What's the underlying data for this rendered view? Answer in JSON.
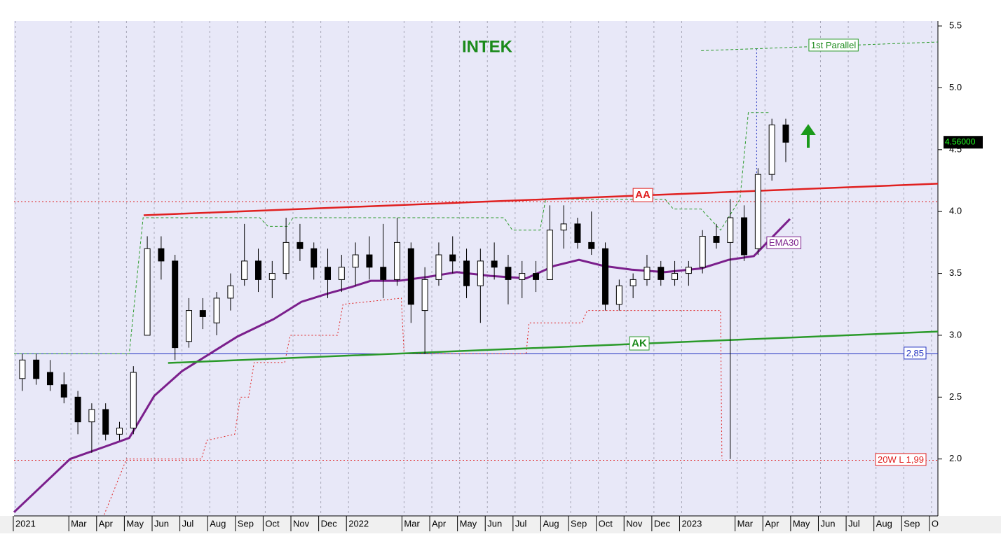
{
  "chart_data": {
    "type": "candlestick",
    "title": "INTEK",
    "xlim": [
      -0.05,
      33.23
    ],
    "xticks": [
      {
        "value": 0,
        "label": "2021"
      },
      {
        "value": 2,
        "label": "Mar"
      },
      {
        "value": 3,
        "label": "Apr"
      },
      {
        "value": 4,
        "label": "May"
      },
      {
        "value": 5,
        "label": "Jun"
      },
      {
        "value": 6,
        "label": "Jul"
      },
      {
        "value": 7,
        "label": "Aug"
      },
      {
        "value": 8,
        "label": "Sep"
      },
      {
        "value": 9,
        "label": "Oct"
      },
      {
        "value": 10,
        "label": "Nov"
      },
      {
        "value": 11,
        "label": "Dec"
      },
      {
        "value": 12,
        "label": "2022"
      },
      {
        "value": 14,
        "label": "Mar"
      },
      {
        "value": 15,
        "label": "Apr"
      },
      {
        "value": 16,
        "label": "May"
      },
      {
        "value": 17,
        "label": "Jun"
      },
      {
        "value": 18,
        "label": "Jul"
      },
      {
        "value": 19,
        "label": "Aug"
      },
      {
        "value": 20,
        "label": "Sep"
      },
      {
        "value": 21,
        "label": "Oct"
      },
      {
        "value": 22,
        "label": "Nov"
      },
      {
        "value": 23,
        "label": "Dec"
      },
      {
        "value": 24,
        "label": "2023"
      },
      {
        "value": 26,
        "label": "Mar"
      },
      {
        "value": 27,
        "label": "Apr"
      },
      {
        "value": 28,
        "label": "May"
      },
      {
        "value": 29,
        "label": "Jun"
      },
      {
        "value": 30,
        "label": "Jul"
      },
      {
        "value": 31,
        "label": "Aug"
      },
      {
        "value": 32,
        "label": "Sep"
      },
      {
        "value": 33,
        "label": "O"
      }
    ],
    "ylim": [
      1.54,
      5.54
    ],
    "yticks": [
      {
        "value": 2,
        "label": "2.0"
      },
      {
        "value": 2.5,
        "label": "2.5"
      },
      {
        "value": 3,
        "label": "3.0"
      },
      {
        "value": 3.5,
        "label": "3.5"
      },
      {
        "value": 4,
        "label": "4.0"
      },
      {
        "value": 4.5,
        "label": "4.5"
      },
      {
        "value": 5,
        "label": "5.0"
      },
      {
        "value": 5.5,
        "label": "5.5"
      }
    ],
    "grid": true,
    "up_color": "#ffffff",
    "down_color": "#000000",
    "x": [
      0.25,
      0.75,
      1.25,
      1.75,
      2.25,
      2.75,
      3.25,
      3.75,
      4.25,
      4.75,
      5.25,
      5.75,
      6.25,
      6.75,
      7.25,
      7.75,
      8.25,
      8.75,
      9.25,
      9.75,
      10.25,
      10.75,
      11.25,
      11.75,
      12.25,
      12.75,
      13.25,
      13.75,
      14.25,
      14.75,
      15.25,
      15.75,
      16.25,
      16.75,
      17.25,
      17.75,
      18.25,
      18.75,
      19.25,
      19.75,
      20.25,
      20.75,
      21.25,
      21.75,
      22.25,
      22.75,
      23.25,
      23.75,
      24.25,
      24.75,
      25.25,
      25.75,
      26.25,
      26.75,
      27.25,
      27.75
    ],
    "open": [
      2.65,
      2.8,
      2.7,
      2.6,
      2.5,
      2.3,
      2.4,
      2.2,
      2.25,
      3.0,
      3.7,
      3.6,
      2.95,
      3.2,
      3.1,
      3.3,
      3.45,
      3.6,
      3.45,
      3.5,
      3.75,
      3.7,
      3.55,
      3.45,
      3.55,
      3.65,
      3.55,
      3.45,
      3.7,
      3.2,
      3.45,
      3.65,
      3.6,
      3.4,
      3.6,
      3.55,
      3.45,
      3.5,
      3.45,
      3.85,
      3.9,
      3.75,
      3.7,
      3.25,
      3.4,
      3.45,
      3.55,
      3.45,
      3.5,
      3.55,
      3.8,
      3.75,
      3.95,
      3.7,
      4.3,
      4.7
    ],
    "high": [
      2.85,
      2.85,
      2.8,
      2.7,
      2.55,
      2.45,
      2.45,
      2.3,
      2.75,
      3.8,
      3.8,
      3.65,
      3.3,
      3.3,
      3.35,
      3.5,
      3.9,
      3.7,
      3.6,
      3.95,
      3.9,
      3.75,
      3.7,
      3.65,
      3.75,
      3.8,
      3.9,
      3.95,
      3.75,
      3.55,
      3.75,
      3.8,
      3.7,
      3.7,
      3.75,
      3.65,
      3.6,
      3.6,
      4.05,
      4.05,
      3.95,
      4.0,
      3.75,
      3.45,
      3.5,
      3.65,
      3.6,
      3.6,
      3.6,
      3.85,
      3.9,
      4.1,
      4.05,
      4.35,
      4.75,
      4.75
    ],
    "low": [
      2.55,
      2.6,
      2.55,
      2.45,
      2.2,
      2.05,
      2.15,
      2.15,
      2.2,
      3.0,
      3.45,
      2.8,
      2.9,
      3.05,
      3.0,
      3.2,
      3.4,
      3.35,
      3.3,
      3.45,
      3.6,
      3.45,
      3.3,
      3.35,
      3.4,
      3.45,
      3.3,
      3.4,
      3.1,
      2.85,
      3.4,
      3.5,
      3.3,
      3.1,
      3.45,
      3.25,
      3.3,
      3.35,
      3.45,
      3.7,
      3.7,
      3.65,
      3.2,
      3.2,
      3.3,
      3.4,
      3.4,
      3.4,
      3.4,
      3.5,
      3.7,
      2.0,
      3.6,
      3.65,
      4.25,
      4.4
    ],
    "close": [
      2.8,
      2.65,
      2.6,
      2.5,
      2.3,
      2.4,
      2.2,
      2.25,
      2.7,
      3.7,
      3.6,
      2.9,
      3.2,
      3.15,
      3.3,
      3.4,
      3.6,
      3.45,
      3.5,
      3.75,
      3.7,
      3.55,
      3.45,
      3.55,
      3.65,
      3.55,
      3.45,
      3.75,
      3.25,
      3.45,
      3.65,
      3.6,
      3.4,
      3.6,
      3.55,
      3.45,
      3.5,
      3.45,
      3.85,
      3.9,
      3.75,
      3.7,
      3.25,
      3.4,
      3.45,
      3.55,
      3.45,
      3.5,
      3.55,
      3.8,
      3.75,
      3.95,
      3.65,
      4.3,
      4.7,
      4.56
    ],
    "lines": [
      {
        "color": "#7b1f8c",
        "style": "solid",
        "width": 3,
        "x": [
          -0.05,
          1.97,
          3.23,
          4.1,
          5,
          6,
          7,
          8,
          9.3,
          10.3,
          11.3,
          12.1,
          12.8,
          13.8,
          14.8,
          15.9,
          17.1,
          18.4,
          19.4,
          20.3,
          21.2,
          22.2,
          23.4,
          24.7,
          25.7,
          26.6,
          27.9
        ],
        "y": [
          1.57,
          2.0,
          2.1,
          2.17,
          2.51,
          2.71,
          2.85,
          2.99,
          3.13,
          3.27,
          3.34,
          3.39,
          3.44,
          3.44,
          3.47,
          3.51,
          3.48,
          3.46,
          3.56,
          3.61,
          3.56,
          3.53,
          3.51,
          3.54,
          3.61,
          3.64,
          3.94
        ]
      },
      {
        "color": "#e02020",
        "style": "dotted",
        "width": 1,
        "x": [
          3.2,
          4.0,
          6.7,
          6.9,
          7.9,
          8.1,
          8.4,
          8.6,
          9.7,
          9.9,
          11.6,
          11.8,
          13.9,
          14.0,
          14.1,
          18.4,
          18.5,
          20.4,
          20.6,
          25.4,
          25.45
        ],
        "y": [
          1.55,
          2.0,
          2.0,
          2.15,
          2.2,
          2.5,
          2.5,
          2.78,
          2.78,
          3.0,
          3.0,
          3.25,
          3.3,
          2.85,
          2.85,
          2.85,
          3.1,
          3.1,
          3.2,
          3.2,
          2.0
        ]
      },
      {
        "color": "#2a9a2a",
        "style": "dashed",
        "width": 1,
        "x": [
          -0.05,
          4.1,
          4.6,
          8.8,
          9.1,
          9.8,
          10.0,
          17.6,
          17.9,
          18.9,
          19.1,
          23.4,
          23.7,
          24.7,
          25.4,
          26.1,
          26.4,
          27.2
        ],
        "y": [
          2.85,
          2.85,
          3.95,
          3.95,
          3.88,
          3.88,
          3.95,
          3.95,
          3.85,
          3.85,
          4.1,
          4.1,
          4.02,
          4.02,
          3.85,
          4.1,
          4.8,
          4.8
        ]
      }
    ],
    "trendlines": [
      {
        "color": "#e02020",
        "x": [
          4.62,
          33.23
        ],
        "y": [
          3.97,
          4.225
        ],
        "label": "AA"
      },
      {
        "color": "#2a9a2a",
        "x": [
          5.5,
          33.23
        ],
        "y": [
          2.776,
          3.03
        ],
        "label": "AK"
      },
      {
        "color": "#2a9a2a",
        "x": [
          24.7,
          33.23
        ],
        "y": [
          5.3,
          5.37
        ],
        "label": "1st Parallel",
        "style": "dashed"
      }
    ],
    "hlines": [
      {
        "value": 4.08,
        "color": "#e02020",
        "style": "dotted"
      },
      {
        "value": 2.85,
        "color": "#2030c0",
        "style": "solid",
        "label": "2,85"
      },
      {
        "value": 1.99,
        "color": "#e02020",
        "style": "dotted",
        "label": "20W L 1,99"
      }
    ],
    "ema_label": "EMA30",
    "vline": {
      "x": 26.7,
      "y": [
        4.2,
        5.32
      ],
      "color": "#2030c0"
    },
    "last_price": {
      "value": 4.56,
      "label": "4.56000"
    }
  }
}
